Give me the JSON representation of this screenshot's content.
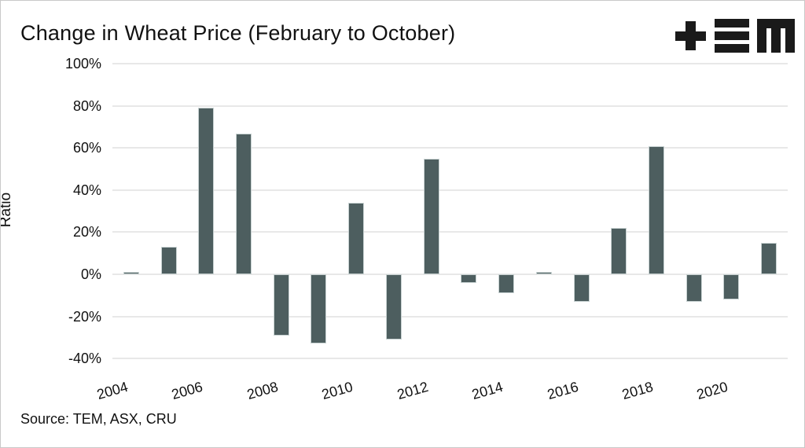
{
  "title": "Change in Wheat Price (February to October)",
  "source": "Source: TEM, ASX, CRU",
  "logo_name": "tem-logo",
  "colors": {
    "bar": "#4d5e5f",
    "bar_edge": "#c8d2d2",
    "grid": "#e8e8e8",
    "text": "#111111",
    "frame": "#c9c9c9",
    "background": "#ffffff"
  },
  "chart_data": {
    "type": "bar",
    "title": "Change in Wheat Price (February to October)",
    "xlabel": "",
    "ylabel": "Ratio",
    "categories": [
      "2004",
      "2005",
      "2006",
      "2007",
      "2008",
      "2009",
      "2010",
      "2011",
      "2012",
      "2013",
      "2014",
      "2015",
      "2016",
      "2017",
      "2018",
      "2019",
      "2020",
      "2021"
    ],
    "values": [
      1,
      13,
      79,
      67,
      -29,
      -33,
      34,
      -31,
      55,
      -4,
      -9,
      1,
      -13,
      22,
      61,
      -13,
      -12,
      15
    ],
    "unit": "%",
    "ylim": [
      -40,
      100
    ],
    "ytick_values": [
      100,
      80,
      60,
      40,
      20,
      0,
      -20,
      -40
    ],
    "ytick_labels": [
      "100%",
      "80%",
      "60%",
      "40%",
      "20%",
      "0%",
      "-20%",
      "-40%"
    ],
    "xtick_labels": [
      "2004",
      "2006",
      "2008",
      "2010",
      "2012",
      "2014",
      "2016",
      "2018",
      "2020"
    ],
    "xtick_bar_indices": [
      0,
      2,
      4,
      6,
      8,
      10,
      12,
      14,
      16
    ],
    "grid": true,
    "legend": false
  }
}
